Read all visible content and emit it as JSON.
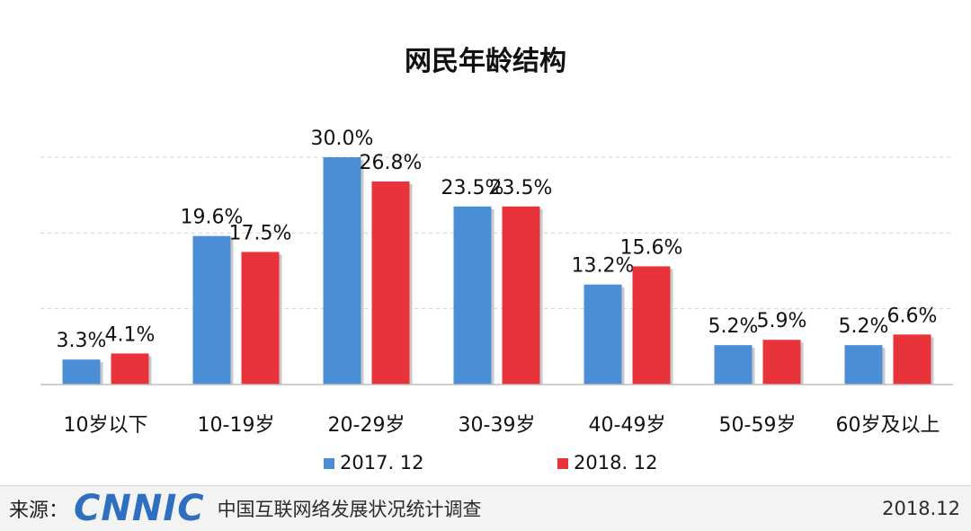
{
  "chart_data": {
    "type": "bar",
    "title": "网民年龄结构",
    "categories": [
      "10岁以下",
      "10-19岁",
      "20-29岁",
      "30-39岁",
      "40-49岁",
      "50-59岁",
      "60岁及以上"
    ],
    "series": [
      {
        "name": "2017. 12",
        "values": [
          3.3,
          19.6,
          30.0,
          23.5,
          13.2,
          5.2,
          5.2
        ],
        "labels": [
          "3.3%",
          "19.6%",
          "30.0%",
          "23.5%",
          "13.2%",
          "5.2%",
          "5.2%"
        ],
        "color": "#4a8fd6"
      },
      {
        "name": "2018. 12",
        "values": [
          4.1,
          17.5,
          26.8,
          23.5,
          15.6,
          5.9,
          6.6
        ],
        "labels": [
          "4.1%",
          "17.5%",
          "26.8%",
          "23.5%",
          "15.6%",
          "5.9%",
          "6.6%"
        ],
        "color": "#e8333a"
      }
    ],
    "ylim": [
      0,
      30
    ],
    "grid": true,
    "legend": "bottom"
  },
  "footer": {
    "source_label": "来源：",
    "logo_text": "CNNIC",
    "report_name": "中国互联网络发展状况统计调查",
    "date": "2018.12"
  }
}
